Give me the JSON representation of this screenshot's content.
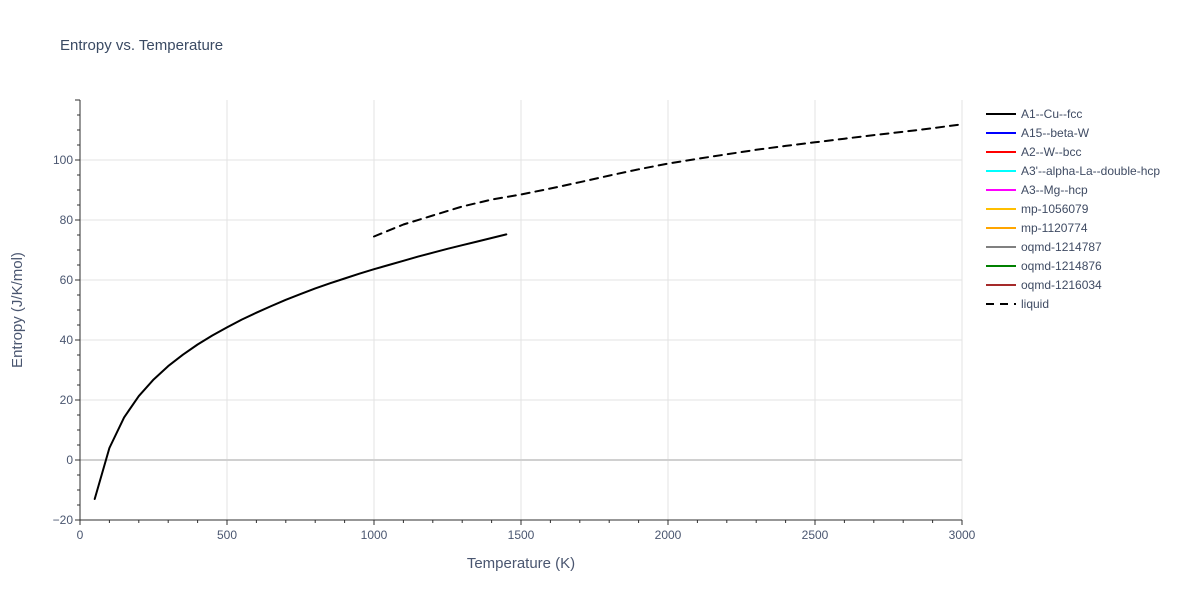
{
  "chart_data": {
    "type": "line",
    "title": "Entropy vs. Temperature",
    "xlabel": "Temperature (K)",
    "ylabel": "Entropy (J/K/mol)",
    "xlim": [
      0,
      3000
    ],
    "ylim": [
      -20,
      120
    ],
    "x_ticks": [
      0,
      500,
      1000,
      1500,
      2000,
      2500,
      3000
    ],
    "x_tick_labels": [
      "0",
      "500",
      "1000",
      "1500",
      "2000",
      "2500",
      "3000"
    ],
    "y_ticks": [
      -20,
      0,
      20,
      40,
      60,
      80,
      100
    ],
    "y_tick_labels": [
      "−20",
      "0",
      "20",
      "40",
      "60",
      "80",
      "100"
    ],
    "grid": true,
    "legend_position": "right",
    "colors": {
      "grid": "#e3e3e3",
      "axis": "#2f2f2f",
      "text": "#4a5670",
      "title": "#3a4a63"
    },
    "series": [
      {
        "name": "A1--Cu--fcc",
        "color": "#000000",
        "dash": "solid",
        "x": [
          50,
          100,
          150,
          200,
          250,
          300,
          350,
          400,
          450,
          500,
          550,
          600,
          650,
          700,
          750,
          800,
          850,
          900,
          950,
          1000,
          1050,
          1100,
          1150,
          1200,
          1250,
          1300,
          1350,
          1400,
          1450
        ],
        "y": [
          -13.0,
          4.0,
          14.2,
          21.3,
          26.8,
          31.3,
          35.1,
          38.5,
          41.5,
          44.2,
          46.8,
          49.1,
          51.3,
          53.4,
          55.3,
          57.2,
          58.9,
          60.5,
          62.1,
          63.6,
          65.0,
          66.4,
          67.8,
          69.1,
          70.4,
          71.6,
          72.8,
          74.0,
          75.2
        ]
      },
      {
        "name": "A15--beta-W",
        "color": "#0000ff",
        "dash": "solid",
        "x": [],
        "y": []
      },
      {
        "name": "A2--W--bcc",
        "color": "#ff0000",
        "dash": "solid",
        "x": [],
        "y": []
      },
      {
        "name": "A3'--alpha-La--double-hcp",
        "color": "#00ffff",
        "dash": "solid",
        "x": [],
        "y": []
      },
      {
        "name": "A3--Mg--hcp",
        "color": "#ff00ff",
        "dash": "solid",
        "x": [],
        "y": []
      },
      {
        "name": "mp-1056079",
        "color": "#ffbf00",
        "dash": "solid",
        "x": [],
        "y": []
      },
      {
        "name": "mp-1120774",
        "color": "#ffa500",
        "dash": "solid",
        "x": [],
        "y": []
      },
      {
        "name": "oqmd-1214787",
        "color": "#808080",
        "dash": "solid",
        "x": [],
        "y": []
      },
      {
        "name": "oqmd-1214876",
        "color": "#008000",
        "dash": "solid",
        "x": [],
        "y": []
      },
      {
        "name": "oqmd-1216034",
        "color": "#a52a2a",
        "dash": "solid",
        "x": [],
        "y": []
      },
      {
        "name": "liquid",
        "color": "#000000",
        "dash": "dashed",
        "x": [
          1000,
          1100,
          1200,
          1300,
          1400,
          1500,
          1600,
          1700,
          1800,
          1900,
          2000,
          2100,
          2200,
          2300,
          2400,
          2500,
          2600,
          2700,
          2800,
          2900,
          3000
        ],
        "y": [
          74.5,
          78.5,
          81.5,
          84.5,
          86.8,
          88.5,
          90.5,
          92.6,
          94.8,
          96.9,
          98.8,
          100.4,
          101.9,
          103.4,
          104.7,
          105.9,
          107.1,
          108.3,
          109.4,
          110.6,
          111.9
        ]
      }
    ]
  }
}
